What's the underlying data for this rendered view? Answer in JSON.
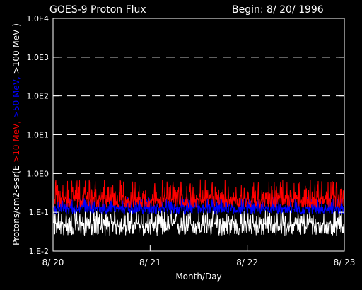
{
  "chart_data": {
    "type": "line",
    "title": "GOES-9 Proton Flux",
    "begin_label": "Begin: 8/ 20/ 1996",
    "xlabel": "Month/Day",
    "ylabel_parts": [
      {
        "text": "Protons/cm2-s-sr(E ",
        "color": "#ffffff"
      },
      {
        "text": ">10 MeV, ",
        "color": "#ff0000"
      },
      {
        "text": ">50 MeV, ",
        "color": "#0000ff"
      },
      {
        "text": ">100 MeV )",
        "color": "#ffffff"
      }
    ],
    "y_scale": "log",
    "ylim": [
      0.01,
      10000
    ],
    "y_ticks": [
      {
        "value": 0.01,
        "label": "1.E-2"
      },
      {
        "value": 0.1,
        "label": "1.E-1"
      },
      {
        "value": 1,
        "label": "1.0E0"
      },
      {
        "value": 10,
        "label": "1.0E1"
      },
      {
        "value": 100,
        "label": "1.0E2"
      },
      {
        "value": 1000,
        "label": "1.0E3"
      },
      {
        "value": 10000,
        "label": "1.0E4"
      }
    ],
    "x_ticks": [
      "8/ 20",
      "8/ 21",
      "8/ 22",
      "8/ 23"
    ],
    "grid": "dashed horizontal at decades",
    "series": [
      {
        "name": ">10 MeV",
        "color": "#ff0000",
        "typical": 0.22,
        "range": [
          0.13,
          0.7
        ]
      },
      {
        "name": ">50 MeV",
        "color": "#0000ff",
        "typical": 0.13,
        "range": [
          0.09,
          0.25
        ]
      },
      {
        "name": ">100 MeV",
        "color": "#ffffff",
        "typical": 0.05,
        "range": [
          0.025,
          0.12
        ]
      }
    ]
  }
}
